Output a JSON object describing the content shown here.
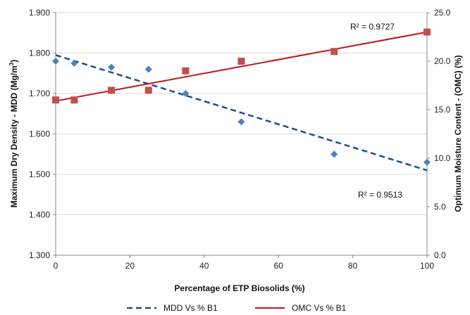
{
  "chart_data": {
    "type": "scatter",
    "x_axis": {
      "label": "Percentage of ETP Biosolids (%)",
      "range": [
        0,
        100
      ],
      "ticks": [
        "0",
        "20",
        "40",
        "60",
        "80",
        "100"
      ]
    },
    "y_left": {
      "label_main": "Maximum Dry Density - MDD  (Mg/m",
      "label_sup": "3",
      "label_end": ")",
      "range": [
        1.3,
        1.9
      ],
      "ticks": [
        "1.300",
        "1.400",
        "1.500",
        "1.600",
        "1.700",
        "1.800",
        "1.900"
      ]
    },
    "y_right": {
      "label": "Optimum Moisture Content - (OMC) (%)",
      "range": [
        0,
        25
      ],
      "ticks": [
        "0.0",
        "5.0",
        "10.0",
        "15.0",
        "20.0",
        "25.0"
      ]
    },
    "grid": true,
    "series": [
      {
        "name": "MDD Vs % B1",
        "axis": "left",
        "marker": "diamond",
        "color": "#4f81bd",
        "trend_color": "#1f4e8c",
        "trend_style": "dashed",
        "x": [
          0,
          5,
          15,
          25,
          35,
          50,
          75,
          100
        ],
        "y": [
          1.78,
          1.775,
          1.765,
          1.76,
          1.7,
          1.63,
          1.55,
          1.53
        ],
        "trendline": {
          "x0": 0,
          "y0": 1.795,
          "x1": 100,
          "y1": 1.51
        },
        "r2_label": "R² = 0.9513"
      },
      {
        "name": "OMC Vs % B1",
        "axis": "right",
        "marker": "square",
        "color": "#c0504d",
        "trend_color": "#c0161b",
        "trend_style": "solid",
        "x": [
          0,
          5,
          15,
          25,
          35,
          50,
          75,
          100
        ],
        "y": [
          16.0,
          16.0,
          17.0,
          17.0,
          19.0,
          20.0,
          21.0,
          23.0
        ],
        "trendline": {
          "x0": 0,
          "y0": 15.9,
          "x1": 100,
          "y1": 23.0
        },
        "r2_label": "R² = 0.9727"
      }
    ],
    "legend_position": "bottom"
  }
}
